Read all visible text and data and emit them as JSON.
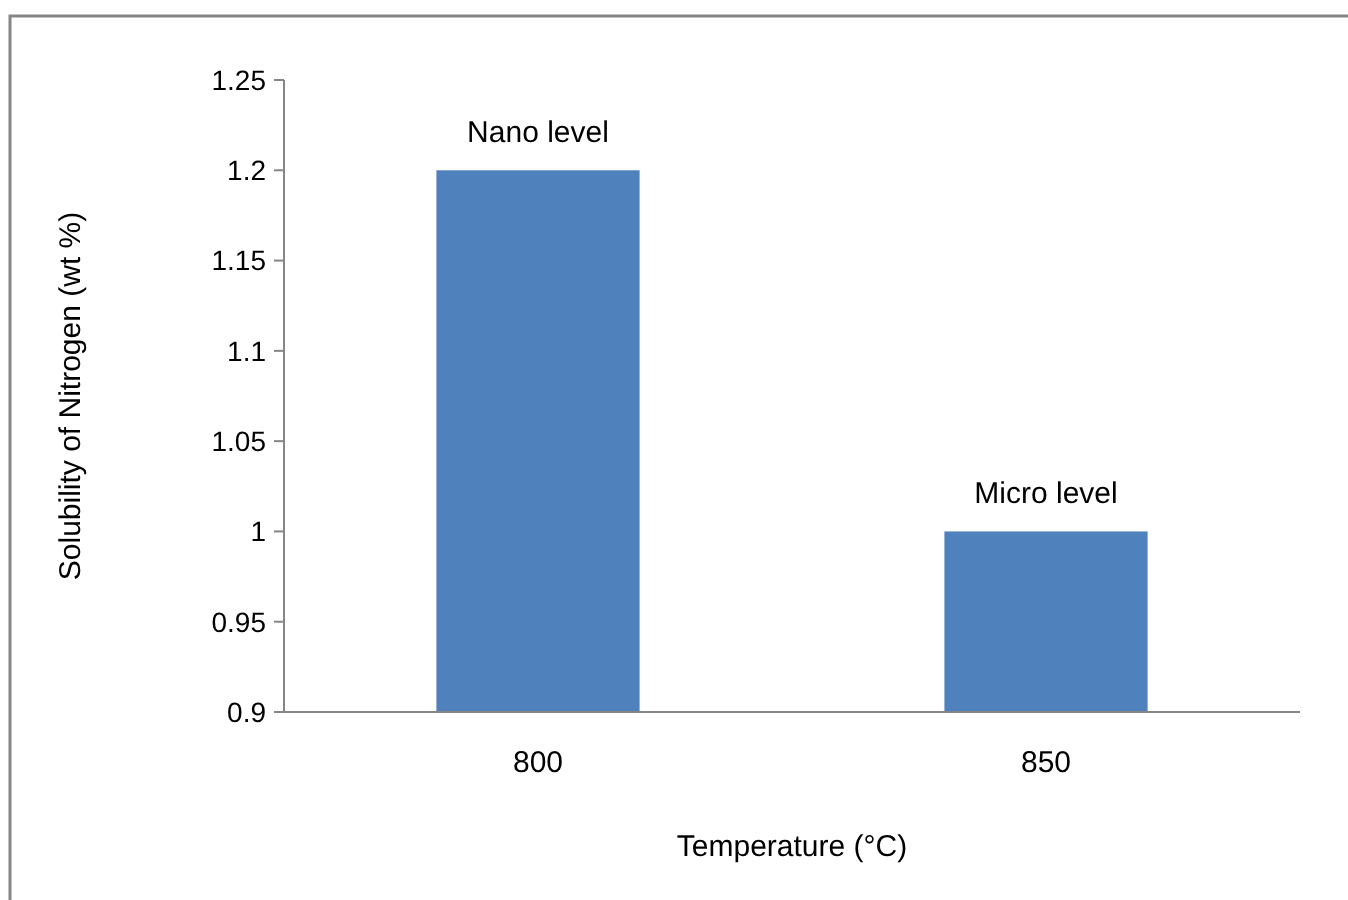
{
  "chart_data": {
    "type": "bar",
    "xlabel": "Temperature (°C)",
    "ylabel": "Solubility of Nitrogen (wt %)",
    "categories": [
      "800",
      "850"
    ],
    "values": [
      1.2,
      1.0
    ],
    "color": "#4f81bd",
    "ylim": [
      0.9,
      1.25
    ],
    "yticks": [
      0.9,
      0.95,
      1,
      1.05,
      1.1,
      1.15,
      1.2,
      1.25
    ],
    "grid": false,
    "annotations": [
      {
        "text": "Nano level",
        "x": "800",
        "y": 1.2
      },
      {
        "text": "Micro level",
        "x": "850",
        "y": 1.0
      }
    ]
  }
}
